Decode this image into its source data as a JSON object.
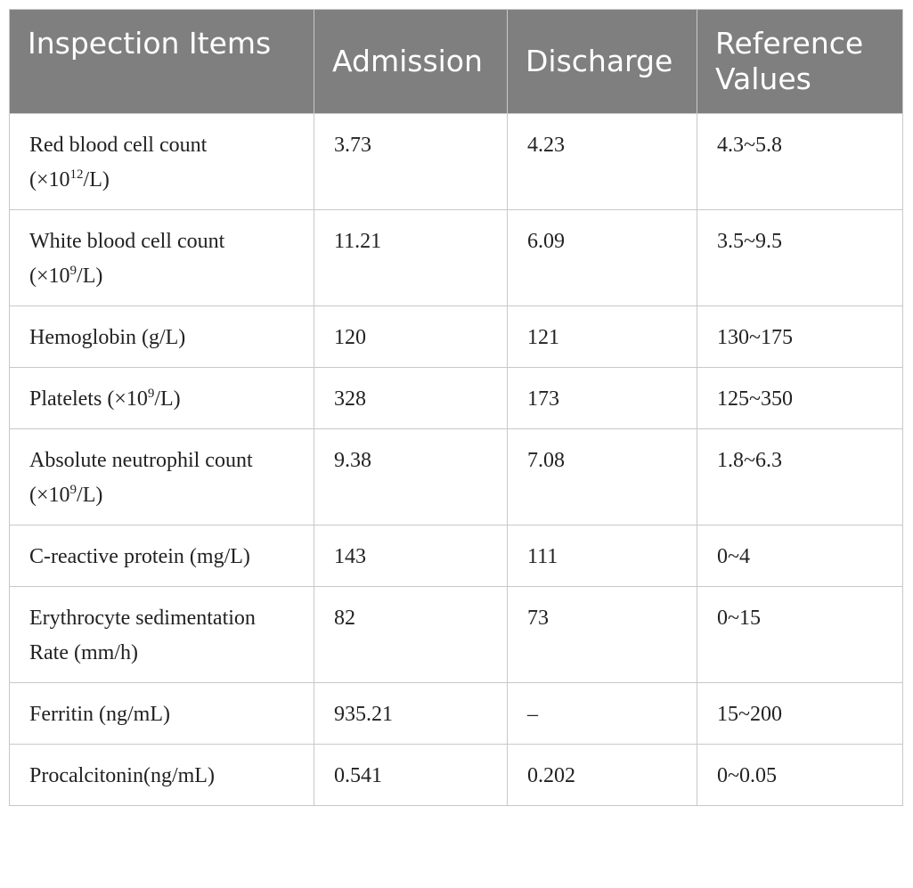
{
  "table": {
    "header": [
      "Inspection Items",
      "Admission",
      "Discharge",
      "Reference Values"
    ],
    "rows": [
      [
        {
          "text": "Red blood cell count (×10",
          "sup": "12",
          "tail": "/L)"
        },
        "3.73",
        "4.23",
        "4.3~5.8"
      ],
      [
        {
          "text": "White blood cell count (×10",
          "sup": "9",
          "tail": "/L)"
        },
        "11.21",
        "6.09",
        "3.5~9.5"
      ],
      [
        "Hemoglobin (g/L)",
        "120",
        "121",
        "130~175"
      ],
      [
        {
          "text": "Platelets (×10",
          "sup": "9",
          "tail": "/L)"
        },
        "328",
        "173",
        "125~350"
      ],
      [
        {
          "text": "Absolute neutrophil count (×10",
          "sup": "9",
          "tail": "/L)"
        },
        "9.38",
        "7.08",
        "1.8~6.3"
      ],
      [
        "C-reactive protein (mg/L)",
        "143",
        "111",
        "0~4"
      ],
      [
        "Erythrocyte sedimentation Rate (mm/h)",
        "82",
        "73",
        "0~15"
      ],
      [
        "Ferritin (ng/mL)",
        "935.21",
        "–",
        "15~200"
      ],
      [
        "Procalcitonin(ng/mL)",
        "0.541",
        "0.202",
        "0~0.05"
      ]
    ]
  }
}
